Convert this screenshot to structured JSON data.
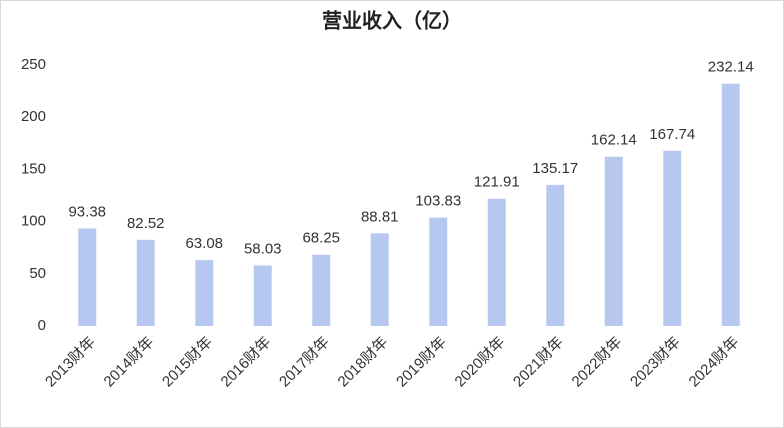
{
  "chart_data": {
    "type": "bar",
    "title": "营业收入（亿）",
    "categories": [
      "2013财年",
      "2014财年",
      "2015财年",
      "2016财年",
      "2017财年",
      "2018财年",
      "2019财年",
      "2020财年",
      "2021财年",
      "2022财年",
      "2023财年",
      "2024财年"
    ],
    "values": [
      93.38,
      82.52,
      63.08,
      58.03,
      68.25,
      88.81,
      103.83,
      121.91,
      135.17,
      162.14,
      167.74,
      232.14
    ],
    "color": "#b7c8f0",
    "ylim": [
      0,
      250
    ],
    "yticks": [
      0,
      50,
      100,
      150,
      200,
      250
    ],
    "grid": false
  }
}
